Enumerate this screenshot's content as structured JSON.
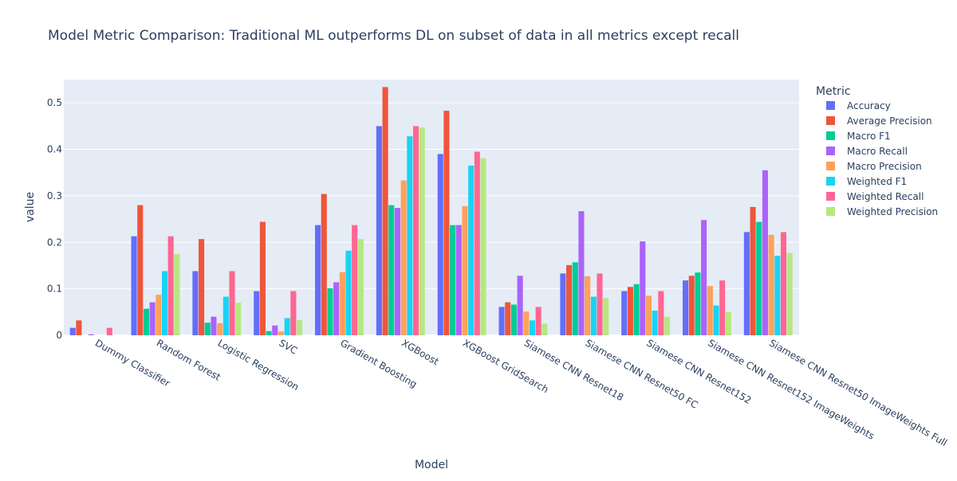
{
  "chart_data": {
    "type": "bar",
    "barmode": "group",
    "title": "Model Metric Comparison: Traditional ML outperforms DL on subset of data in all metrics except recall",
    "xlabel": "Model",
    "ylabel": "value",
    "ylim": [
      0,
      0.55
    ],
    "yticks": [
      0,
      0.1,
      0.2,
      0.3,
      0.4,
      0.5
    ],
    "ytick_labels": [
      "0",
      "0.1",
      "0.2",
      "0.3",
      "0.4",
      "0.5"
    ],
    "grid": true,
    "legend": {
      "title": "Metric",
      "placement": "right"
    },
    "categories": [
      "Dummy Classifier",
      "Random Forest",
      "Logistic Regression",
      "SVC",
      "Gradient Boosting",
      "XGBoost",
      "XGBoost GridSearch",
      "Siamese CNN Resnet18",
      "Siamese CNN Resnet50 FC",
      "Siamese CNN Resnet152",
      "Siamese CNN Resnet152 ImageWeights",
      "Siamese CNN Resnet50 ImageWeights Full"
    ],
    "series": [
      {
        "name": "Accuracy",
        "color": "#636efa",
        "values": [
          0.016,
          0.213,
          0.138,
          0.095,
          0.237,
          0.45,
          0.39,
          0.061,
          0.133,
          0.095,
          0.118,
          0.222
        ]
      },
      {
        "name": "Average Precision",
        "color": "#ef553b",
        "values": [
          0.032,
          0.28,
          0.207,
          0.244,
          0.304,
          0.534,
          0.483,
          0.071,
          0.151,
          0.104,
          0.128,
          0.276
        ]
      },
      {
        "name": "Macro F1",
        "color": "#00cc96",
        "values": [
          0.0,
          0.057,
          0.027,
          0.009,
          0.101,
          0.28,
          0.237,
          0.066,
          0.157,
          0.11,
          0.135,
          0.244
        ]
      },
      {
        "name": "Macro Recall",
        "color": "#ab63fa",
        "values": [
          0.002,
          0.071,
          0.04,
          0.021,
          0.114,
          0.274,
          0.237,
          0.128,
          0.267,
          0.202,
          0.248,
          0.355
        ]
      },
      {
        "name": "Macro Precision",
        "color": "#ffa15a",
        "values": [
          0.0,
          0.087,
          0.026,
          0.008,
          0.136,
          0.333,
          0.278,
          0.051,
          0.127,
          0.085,
          0.106,
          0.216
        ]
      },
      {
        "name": "Weighted F1",
        "color": "#19d3f3",
        "values": [
          0.0,
          0.138,
          0.083,
          0.037,
          0.182,
          0.428,
          0.365,
          0.032,
          0.083,
          0.053,
          0.064,
          0.171
        ]
      },
      {
        "name": "Weighted Recall",
        "color": "#ff6692",
        "values": [
          0.016,
          0.213,
          0.138,
          0.095,
          0.237,
          0.45,
          0.395,
          0.061,
          0.133,
          0.095,
          0.118,
          0.222
        ]
      },
      {
        "name": "Weighted Precision",
        "color": "#b6e880",
        "values": [
          0.0,
          0.175,
          0.07,
          0.033,
          0.207,
          0.447,
          0.381,
          0.025,
          0.08,
          0.04,
          0.05,
          0.177
        ]
      }
    ]
  }
}
